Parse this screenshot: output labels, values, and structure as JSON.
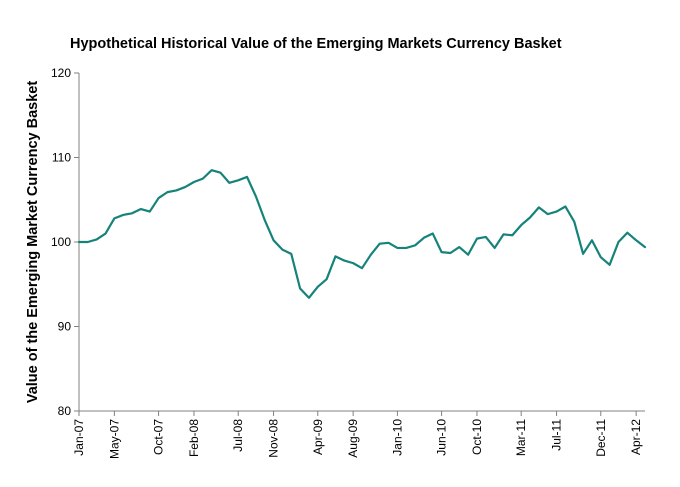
{
  "chart_data": {
    "type": "line",
    "title": "Hypothetical Historical Value of the Emerging Markets Currency Basket",
    "xlabel": "",
    "ylabel": "Value of the Emerging Market Currency Basket",
    "ylim": [
      80,
      120
    ],
    "yticks": [
      80,
      90,
      100,
      110,
      120
    ],
    "grid": false,
    "line_color": "#16837a",
    "x_tick_labels": [
      "Jan-07",
      "May-07",
      "Oct-07",
      "Feb-08",
      "Jul-08",
      "Nov-08",
      "Apr-09",
      "Aug-09",
      "Jan-10",
      "Jun-10",
      "Oct-10",
      "Mar-11",
      "Jul-11",
      "Dec-11",
      "Apr-12"
    ],
    "x_tick_indices": [
      0,
      4,
      9,
      13,
      18,
      22,
      27,
      31,
      36,
      41,
      45,
      50,
      54,
      59,
      63
    ],
    "series": [
      {
        "name": "Emerging Markets Currency Basket",
        "values": [
          100.0,
          100.0,
          100.3,
          101.0,
          102.8,
          103.2,
          103.4,
          103.9,
          103.6,
          105.2,
          105.9,
          106.1,
          106.5,
          107.1,
          107.5,
          108.5,
          108.2,
          107.0,
          107.3,
          107.7,
          105.4,
          102.6,
          100.2,
          99.1,
          98.6,
          94.5,
          93.4,
          94.7,
          95.6,
          98.3,
          97.8,
          97.5,
          96.9,
          98.5,
          99.8,
          99.9,
          99.3,
          99.3,
          99.6,
          100.5,
          101.0,
          98.8,
          98.7,
          99.4,
          98.5,
          100.4,
          100.6,
          99.3,
          100.9,
          100.8,
          102.0,
          102.9,
          104.1,
          103.3,
          103.6,
          104.2,
          102.4,
          98.6,
          100.2,
          98.2,
          97.3,
          100.0,
          101.1,
          100.2,
          99.4
        ]
      }
    ]
  }
}
